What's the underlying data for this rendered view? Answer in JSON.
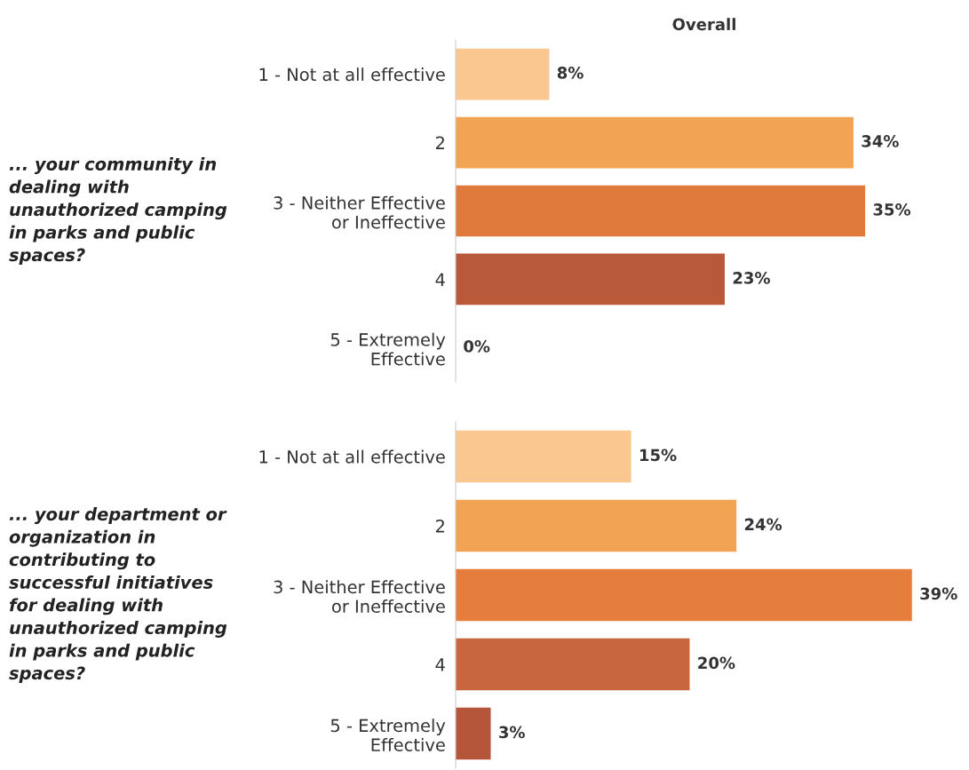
{
  "chart_data": [
    {
      "type": "bar",
      "orientation": "horizontal",
      "title": "Overall",
      "ylabel": "... your community in\ndealing with\nunauthorized camping\nin parks and public\nspaces?",
      "categories": [
        "1 - Not at all effective",
        "2",
        "3 - Neither Effective\nor Ineffective",
        "4",
        "5 - Extremely\nEffective"
      ],
      "values": [
        8,
        34,
        35,
        23,
        0
      ],
      "value_labels": [
        "8%",
        "34%",
        "35%",
        "23%",
        "0%"
      ],
      "colors": [
        "#f9c78f",
        "#f2a354",
        "#e07a3c",
        "#b85a3a",
        "#b85a3a"
      ]
    },
    {
      "type": "bar",
      "orientation": "horizontal",
      "ylabel": "... your department or\norganization in\ncontributing to\nsuccessful initiatives\nfor dealing with\nunauthorized camping\nin parks and public\nspaces?",
      "categories": [
        "1 - Not at all effective",
        "2",
        "3 - Neither Effective\nor Ineffective",
        "4",
        "5 - Extremely\nEffective"
      ],
      "values": [
        15,
        24,
        39,
        20,
        3
      ],
      "value_labels": [
        "15%",
        "24%",
        "39%",
        "20%",
        "3%"
      ],
      "colors": [
        "#f9c78f",
        "#f2a354",
        "#e57e3c",
        "#c8673f",
        "#b5563a"
      ]
    }
  ]
}
